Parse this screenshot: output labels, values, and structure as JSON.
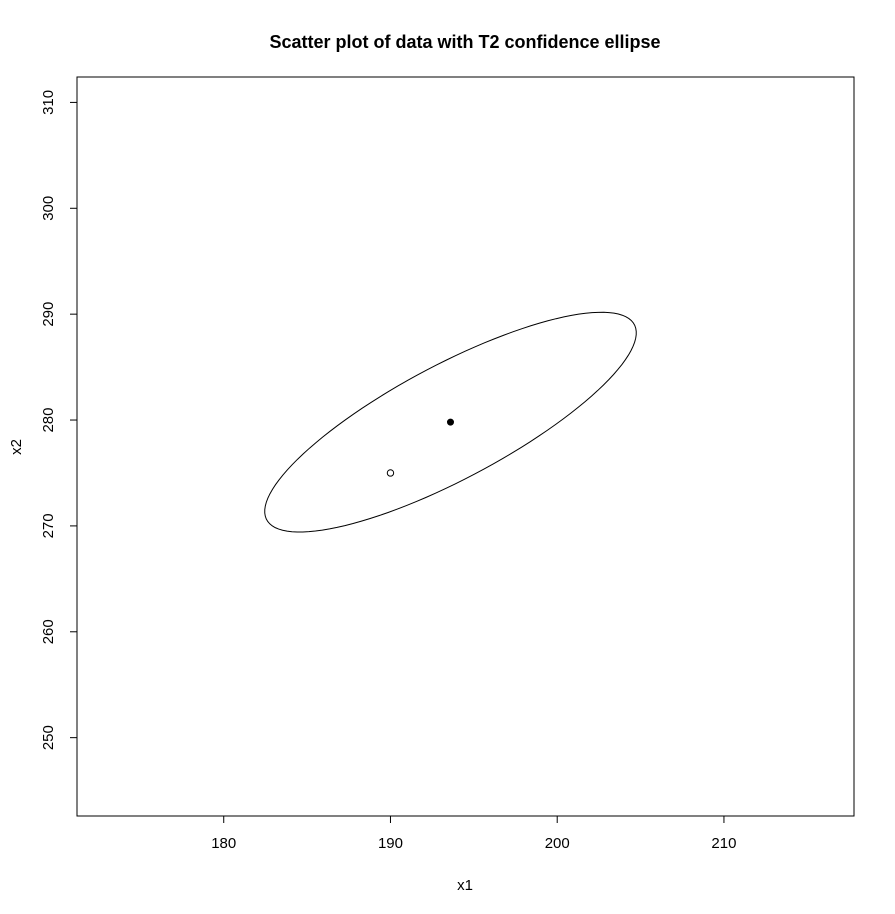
{
  "chart_data": {
    "type": "scatter",
    "title": "Scatter plot of data with T2 confidence ellipse",
    "xlabel": "x1",
    "ylabel": "x2",
    "xlim": [
      171.2,
      217.8
    ],
    "ylim": [
      242.6,
      312.4
    ],
    "x_ticks": [
      180,
      190,
      200,
      210
    ],
    "y_ticks": [
      250,
      260,
      270,
      280,
      290,
      300,
      310
    ],
    "x_tick_labels": [
      "180",
      "190",
      "200",
      "210"
    ],
    "y_tick_labels": [
      "250",
      "260",
      "270",
      "280",
      "290",
      "300",
      "310"
    ],
    "grid": false,
    "legend": "none",
    "points": [
      {
        "x": 193.6,
        "y": 279.8,
        "marker": "filled-circle"
      },
      {
        "x": 190.0,
        "y": 275.0,
        "marker": "open-circle"
      }
    ],
    "ellipse": {
      "center": [
        193.6,
        279.8
      ],
      "semi_major": 14.5,
      "semi_minor": 4.65,
      "angle_deg": 42.5
    },
    "colors": {
      "line": "#000000",
      "background": "#ffffff"
    }
  }
}
